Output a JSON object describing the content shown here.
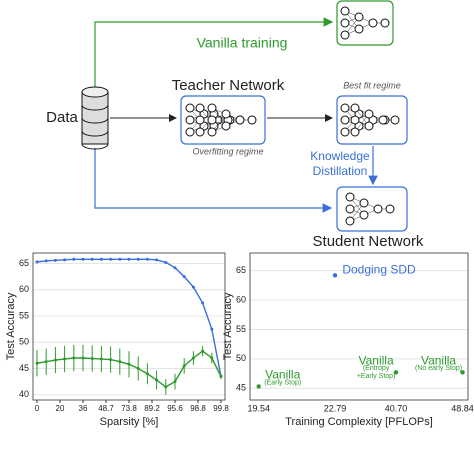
{
  "diagram": {
    "data": "Data",
    "vanilla": "Vanilla training",
    "teacher": "Teacher Network",
    "overfit": "Overfitting regime",
    "bestfit": "Best fit regime",
    "kd": [
      "Knowledge",
      "Distillation"
    ],
    "student": "Student Network"
  },
  "chart_data": [
    {
      "type": "line",
      "xlabel": "Sparsity [%]",
      "ylabel": "Test Accuracy",
      "x": [
        0,
        2,
        4,
        6,
        8,
        10,
        12,
        14,
        16,
        18,
        20,
        22,
        24,
        26,
        28,
        30,
        32,
        34,
        36,
        38,
        40
      ],
      "xlim": [
        0,
        40
      ],
      "xticks": [
        {
          "value": 0,
          "label": "0"
        },
        {
          "value": 5,
          "label": "20"
        },
        {
          "value": 10,
          "label": "36"
        },
        {
          "value": 15,
          "label": "48.7"
        },
        {
          "value": 20,
          "label": "73.8"
        },
        {
          "value": 25,
          "label": "89.2"
        },
        {
          "value": 30,
          "label": "95.6"
        },
        {
          "value": 35,
          "label": "98.8"
        },
        {
          "value": 40,
          "label": "99.8"
        }
      ],
      "ylim": [
        39,
        67
      ],
      "yticks": [
        40,
        45,
        50,
        55,
        60,
        65
      ],
      "grid": true,
      "series": [
        {
          "color": "#3a6fd8",
          "values": [
            65.3,
            65.5,
            65.6,
            65.7,
            65.8,
            65.8,
            65.8,
            65.8,
            65.8,
            65.8,
            65.8,
            65.8,
            65.8,
            65.7,
            65.2,
            64.2,
            62.5,
            60.5,
            57.5,
            52.5,
            43.5
          ]
        },
        {
          "color": "#2e9a2e",
          "values": [
            46.0,
            46.3,
            46.6,
            46.8,
            47.0,
            47.0,
            46.9,
            46.8,
            46.7,
            46.3,
            45.8,
            45.0,
            44.0,
            42.8,
            41.5,
            42.5,
            45.5,
            47.0,
            48.3,
            47.0,
            43.5
          ],
          "errors": [
            2.5,
            2.5,
            2.5,
            2.5,
            2.5,
            2.5,
            2.5,
            2.5,
            2.5,
            2.5,
            2.5,
            2.3,
            2.0,
            1.8,
            1.5,
            1.5,
            1.5,
            1.3,
            1.0,
            1.0,
            0.5
          ]
        }
      ]
    },
    {
      "type": "scatter",
      "xlabel": "Training Complexity [PFLOPs]",
      "ylabel": "Test Accuracy",
      "categories": [
        "19.54",
        "22.79",
        "40.70",
        "48.84"
      ],
      "values": [
        45.3,
        64.2,
        47.7,
        47.7
      ],
      "colors": [
        "#2e9a2e",
        "#3a6fd8",
        "#2e9a2e",
        "#2e9a2e"
      ],
      "point_labels": [
        [
          "Vanilla",
          "(Early Stop)"
        ],
        [
          "Dodging SDD"
        ],
        [
          "Vanilla",
          "(Entropy",
          "+Early Stop)"
        ],
        [
          "Vanilla",
          "(No early Stop)"
        ]
      ],
      "ylim": [
        43,
        68
      ],
      "yticks": [
        45,
        50,
        55,
        60,
        65
      ],
      "grid": true
    }
  ]
}
